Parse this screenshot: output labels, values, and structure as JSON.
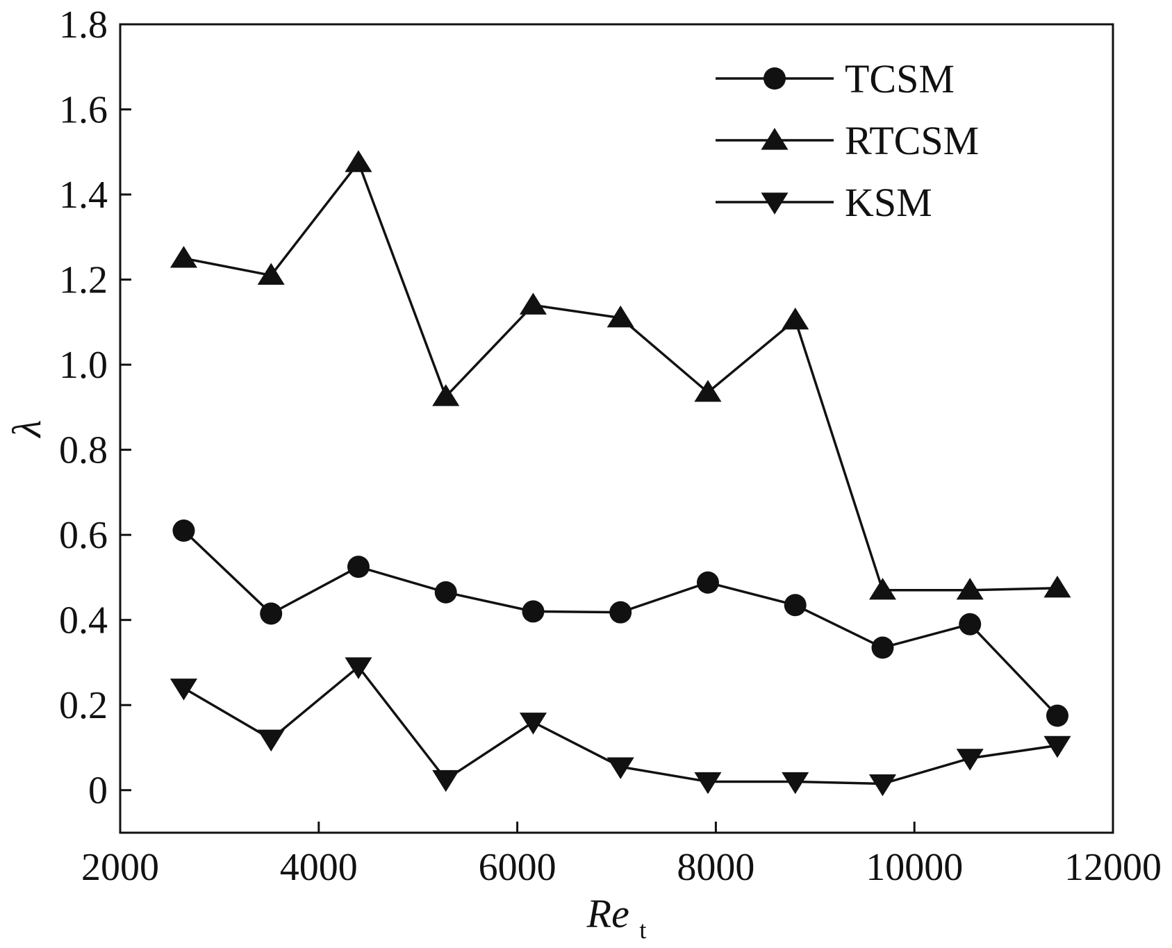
{
  "chart_data": {
    "type": "line",
    "title": "",
    "xlabel": "Re",
    "xlabel_subscript": "t",
    "ylabel": "λ",
    "xlim": [
      2000,
      12000
    ],
    "ylim": [
      -0.1,
      1.8
    ],
    "xticks": [
      2000,
      4000,
      6000,
      8000,
      10000,
      12000
    ],
    "yticks": [
      0,
      0.2,
      0.4,
      0.6,
      0.8,
      1.0,
      1.2,
      1.4,
      1.6,
      1.8
    ],
    "ytick_labels": [
      "0",
      "0.2",
      "0.4",
      "0.6",
      "0.8",
      "1.0",
      "1.2",
      "1.4",
      "1.6",
      "1.8"
    ],
    "grid": false,
    "legend_position": "top-right",
    "x": [
      2640,
      3520,
      4400,
      5280,
      6160,
      7040,
      7920,
      8800,
      9680,
      10560,
      11440
    ],
    "series": [
      {
        "name": "TCSM",
        "marker": "circle",
        "values": [
          0.61,
          0.415,
          0.525,
          0.465,
          0.42,
          0.418,
          0.488,
          0.435,
          0.335,
          0.39,
          0.175
        ]
      },
      {
        "name": "RTCSM",
        "marker": "triangle-up",
        "values": [
          1.25,
          1.21,
          1.475,
          0.925,
          1.14,
          1.11,
          0.935,
          1.105,
          0.47,
          0.47,
          0.475
        ]
      },
      {
        "name": "KSM",
        "marker": "triangle-down",
        "values": [
          0.24,
          0.12,
          0.29,
          0.025,
          0.16,
          0.055,
          0.02,
          0.02,
          0.015,
          0.075,
          0.105
        ]
      }
    ]
  }
}
